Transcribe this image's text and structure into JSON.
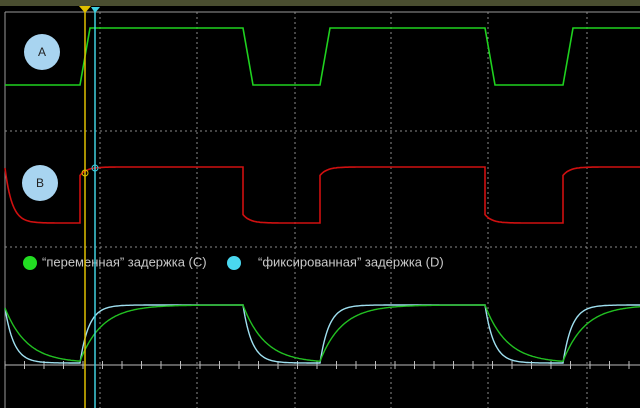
{
  "channels": {
    "a": {
      "label": "A"
    },
    "b": {
      "label": "B"
    }
  },
  "legend": [
    {
      "text": "“переменная” задержка (C)"
    },
    {
      "text": "“фиксированная” задержка (D)"
    }
  ]
}
